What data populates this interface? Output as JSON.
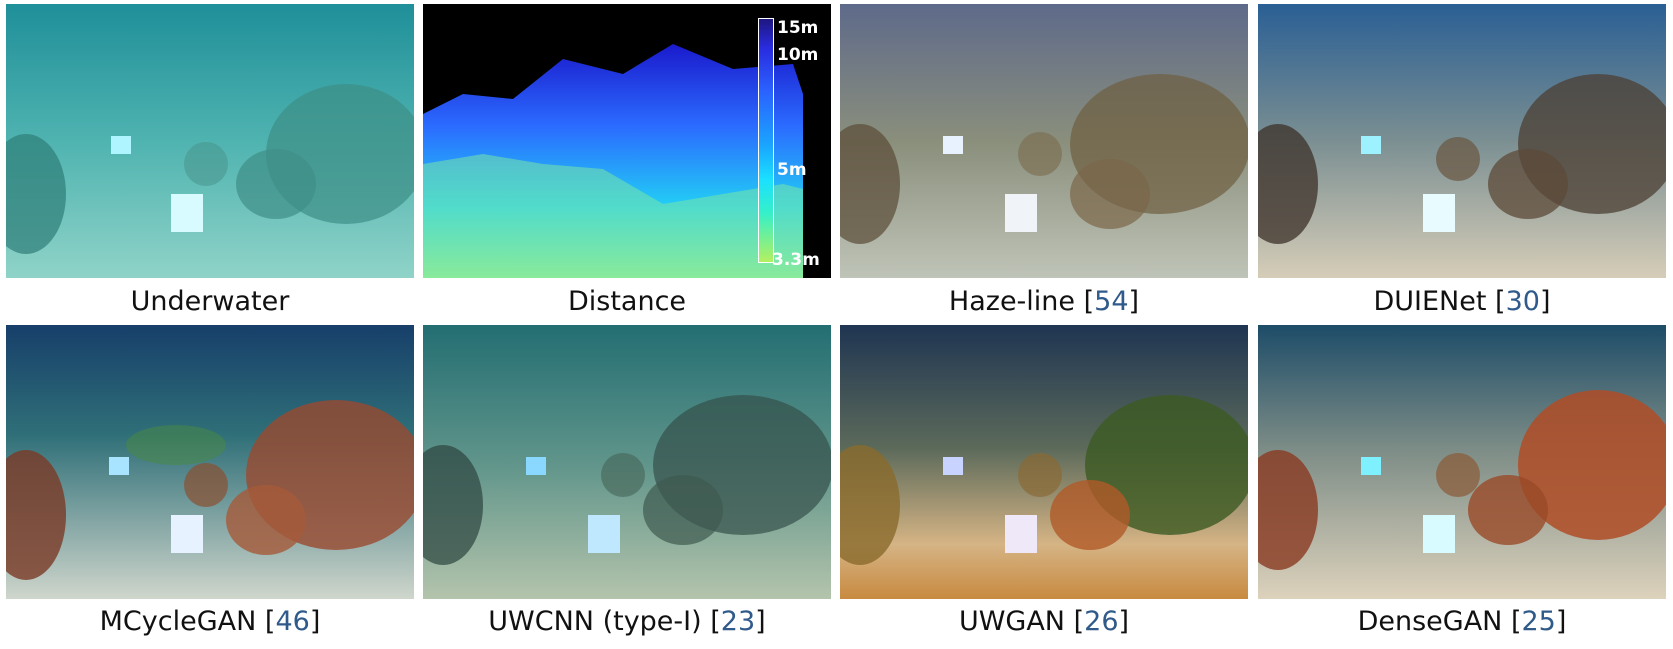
{
  "panels": [
    {
      "caption": "Underwater",
      "ref": ""
    },
    {
      "caption": "Distance",
      "ref": ""
    },
    {
      "caption": "Haze-line ",
      "ref": "54"
    },
    {
      "caption": "DUIENet ",
      "ref": "30"
    },
    {
      "caption": "MCycleGAN ",
      "ref": "46"
    },
    {
      "caption": "UWCNN (type-I) ",
      "ref": "23"
    },
    {
      "caption": "UWGAN ",
      "ref": "26"
    },
    {
      "caption": "DenseGAN ",
      "ref": "25"
    }
  ],
  "depth_legend": {
    "ticks": [
      "15m",
      "10m",
      "5m",
      "3.3m"
    ]
  }
}
